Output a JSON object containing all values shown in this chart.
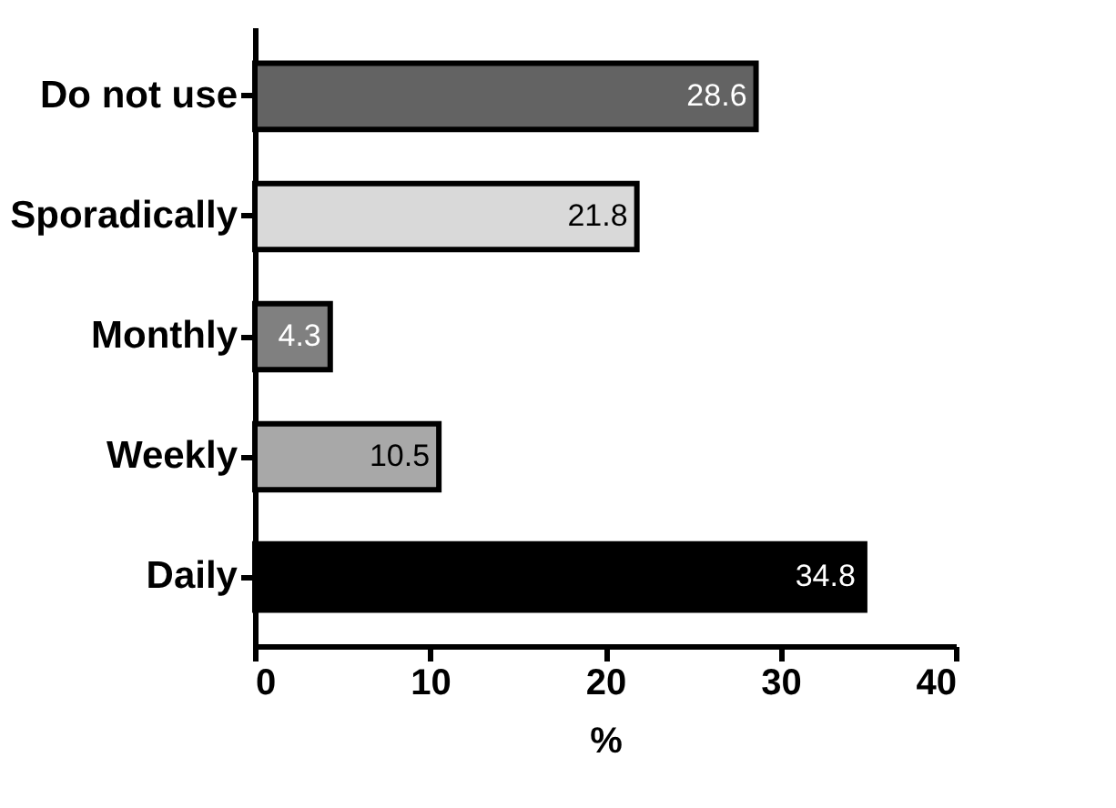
{
  "chart_data": {
    "type": "bar",
    "orientation": "horizontal",
    "categories": [
      "Do not use",
      "Sporadically",
      "Monthly",
      "Weekly",
      "Daily"
    ],
    "values": [
      28.6,
      21.8,
      4.3,
      10.5,
      34.8
    ],
    "colors": [
      "#636363",
      "#d9d9d9",
      "#808080",
      "#a8a8a8",
      "#000000"
    ],
    "xlim": [
      0,
      40
    ],
    "xticks": [
      0,
      10,
      20,
      30,
      40
    ],
    "xlabel": "%",
    "data_labels": true,
    "grid": false
  }
}
